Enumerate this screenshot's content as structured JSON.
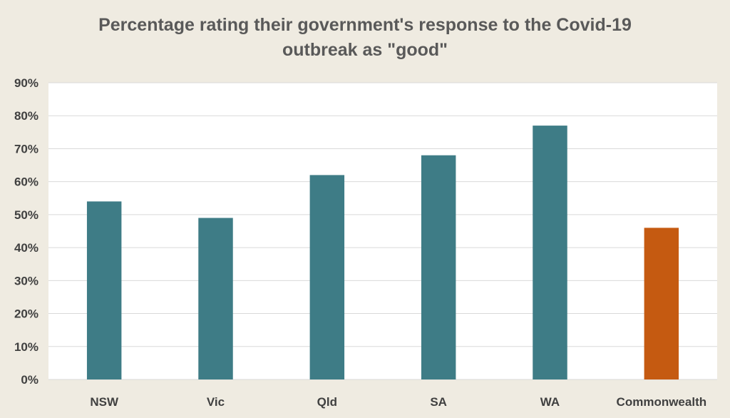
{
  "chart_data": {
    "type": "bar",
    "title_lines": [
      "Percentage rating  their government's response to the Covid-19",
      "outbreak as \"good\""
    ],
    "categories": [
      "NSW",
      "Vic",
      "Qld",
      "SA",
      "WA",
      "Commonwealth"
    ],
    "values": [
      54,
      49,
      62,
      68,
      77,
      46
    ],
    "bar_colors": [
      "#3e7c86",
      "#3e7c86",
      "#3e7c86",
      "#3e7c86",
      "#3e7c86",
      "#c55a11"
    ],
    "ylim": [
      0,
      90
    ],
    "yticks": [
      0,
      10,
      20,
      30,
      40,
      50,
      60,
      70,
      80,
      90
    ],
    "ytick_labels": [
      "0%",
      "10%",
      "20%",
      "30%",
      "40%",
      "50%",
      "60%",
      "70%",
      "80%",
      "90%"
    ],
    "grid": true,
    "legend": "none",
    "plot_background": "#ffffff",
    "page_background": "#efebe1"
  }
}
